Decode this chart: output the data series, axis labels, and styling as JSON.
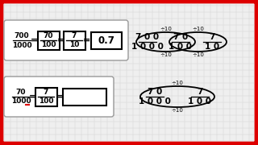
{
  "border_color": "#dd0000",
  "grid_bg": "#efefef",
  "grid_line": "#d0d0d0",
  "white": "#ffffff",
  "black": "#000000",
  "red": "#dd0000",
  "gray_border": "#999999"
}
